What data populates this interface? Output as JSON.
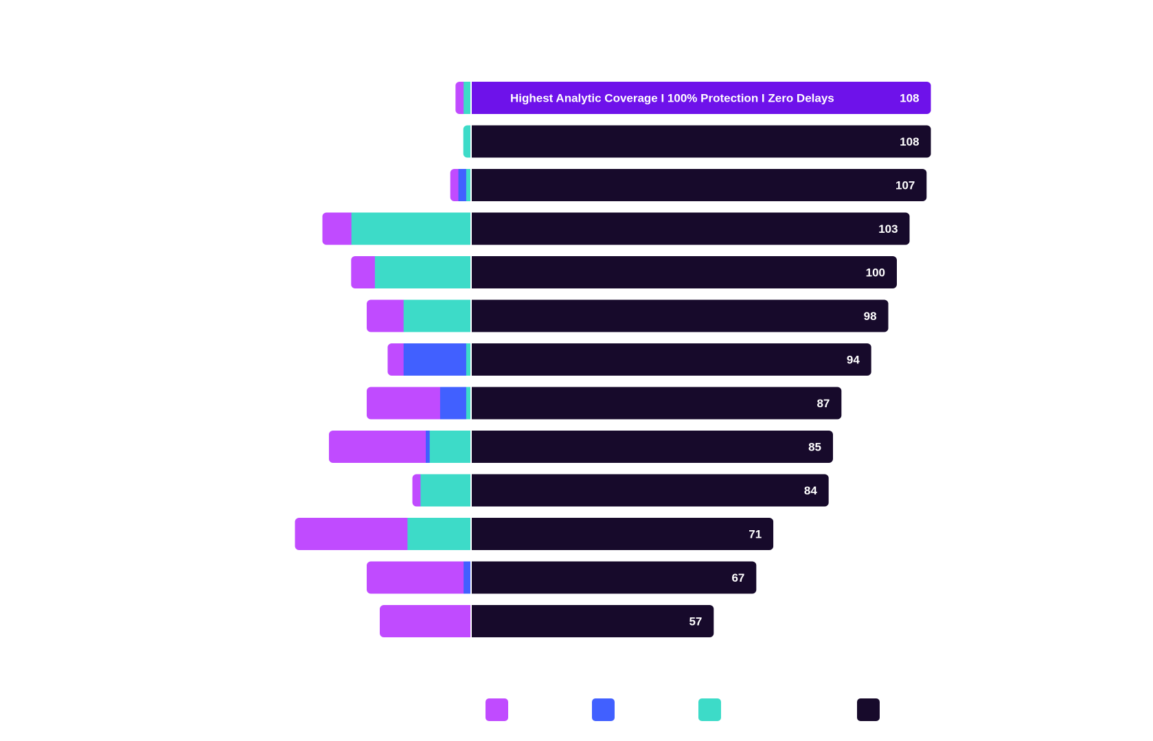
{
  "chart_data": {
    "type": "bar",
    "orientation": "horizontal-diverging",
    "title": "",
    "highlight_text": "Highest Analytic Coverage I 100% Protection I Zero Delays",
    "rows": [
      {
        "total": 108,
        "highlight": true,
        "segments_left": [
          3,
          0,
          3
        ]
      },
      {
        "total": 108,
        "highlight": false,
        "segments_left": [
          0,
          0,
          3
        ]
      },
      {
        "total": 107,
        "highlight": false,
        "segments_left": [
          3,
          3,
          2
        ]
      },
      {
        "total": 103,
        "highlight": false,
        "segments_left": [
          11,
          0,
          46
        ]
      },
      {
        "total": 100,
        "highlight": false,
        "segments_left": [
          9,
          0,
          37
        ]
      },
      {
        "total": 98,
        "highlight": false,
        "segments_left": [
          14,
          0,
          26
        ]
      },
      {
        "total": 94,
        "highlight": false,
        "segments_left": [
          6,
          24,
          2
        ]
      },
      {
        "total": 87,
        "highlight": false,
        "segments_left": [
          28,
          10,
          2
        ]
      },
      {
        "total": 85,
        "highlight": false,
        "segments_left": [
          37,
          1.5,
          16
        ]
      },
      {
        "total": 84,
        "highlight": false,
        "segments_left": [
          3,
          0,
          19.5
        ]
      },
      {
        "total": 71,
        "highlight": false,
        "segments_left": [
          43,
          0,
          24.5
        ]
      },
      {
        "total": 67,
        "highlight": false,
        "segments_left": [
          37,
          3,
          0
        ]
      },
      {
        "total": 57,
        "highlight": false,
        "segments_left": [
          35,
          0,
          0
        ]
      }
    ],
    "legend": [
      {
        "name": "",
        "color": "#c04bff"
      },
      {
        "name": "",
        "color": "#4160ff"
      },
      {
        "name": "",
        "color": "#3ddbc8"
      },
      {
        "name": "",
        "color": "#170a2b"
      }
    ],
    "xlim_left": [
      0,
      70
    ],
    "xlim_right": [
      0,
      115
    ],
    "legend_position": "bottom"
  },
  "colors": {
    "magenta": "#c04bff",
    "blue": "#4160ff",
    "teal": "#3ddbc8",
    "dark": "#170a2b",
    "highlight": "#6e12ea",
    "divider": "#ffffff"
  }
}
